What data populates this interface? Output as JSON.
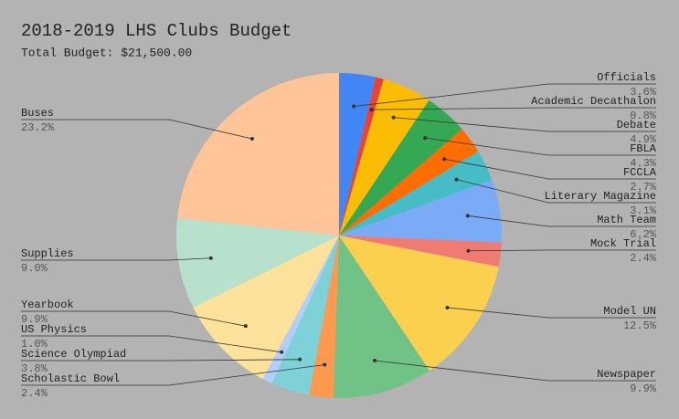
{
  "chart_data": {
    "type": "pie",
    "title": "2018-2019 LHS Clubs Budget",
    "subtitle": "Total Budget: $21,500.00",
    "categories": [
      "Officials",
      "Academic Decathalon",
      "Debate",
      "FBLA",
      "FCCLA",
      "Literary Magazine",
      "Math Team",
      "Mock Trial",
      "Model UN",
      "Newspaper",
      "Scholastic Bowl",
      "Science Olympiad",
      "US Physics",
      "Yearbook",
      "Supplies",
      "Buses"
    ],
    "values": [
      3.6,
      0.8,
      4.9,
      4.3,
      2.7,
      3.1,
      6.2,
      2.4,
      12.5,
      9.9,
      2.4,
      3.8,
      1.0,
      9.9,
      9.0,
      23.2
    ],
    "value_labels": [
      "3.6%",
      "0.8%",
      "4.9%",
      "4.3%",
      "2.7%",
      "3.1%",
      "6.2%",
      "2.4%",
      "12.5%",
      "9.9%",
      "2.4%",
      "3.8%",
      "1.0%",
      "9.9%",
      "9.0%",
      "23.2%"
    ],
    "colors": [
      "#4285f4",
      "#ea4335",
      "#fbbc04",
      "#34a853",
      "#ff6d01",
      "#46bdc6",
      "#7baaf7",
      "#f07b72",
      "#fcd04f",
      "#71c287",
      "#ff994d",
      "#7ed1d7",
      "#b3cefb",
      "#fce29a",
      "#b7e1cd",
      "#ffc599"
    ]
  }
}
